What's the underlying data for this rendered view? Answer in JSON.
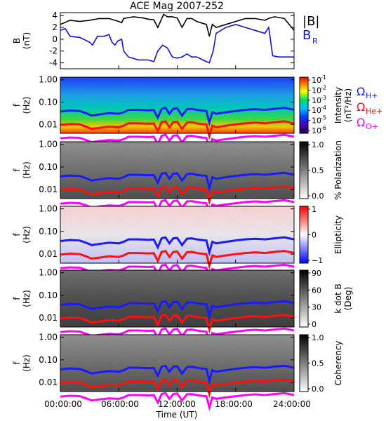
{
  "chart_data": {
    "type": "line",
    "title": "ACE Mag 2007-252",
    "xlabel": "Time (UT)",
    "xlim": [
      0,
      24
    ],
    "x_ticks": [
      "00:00:00",
      "06:00:00",
      "12:00:00",
      "18:00:00",
      "24:00:00"
    ],
    "colors": {
      "B_total": "#000000",
      "B_R": "#1010e0",
      "H": "#1a1aff",
      "He": "#ff1010",
      "O": "#ff00ff"
    },
    "panels": [
      {
        "key": "field",
        "ylabel": "B",
        "yunit": "(nT)",
        "ylim": [
          -5,
          4.5
        ],
        "yticks": [
          "4",
          "2",
          "0",
          "-2",
          "-4"
        ],
        "legend": [
          "|B|",
          "B",
          "R"
        ],
        "series": [
          {
            "name": "|B|",
            "color": "#000000",
            "x": [
              0,
              1,
              2,
              3,
              4,
              5,
              6,
              6.3,
              6.5,
              7.5,
              8.5,
              9,
              9.6,
              10,
              10.6,
              11,
              11.5,
              12,
              12.5,
              13,
              13.5,
              14,
              15,
              15.3,
              15.6,
              16,
              17,
              18,
              19,
              20,
              21,
              21.5,
              22,
              23,
              24
            ],
            "y": [
              2.5,
              3.2,
              3.0,
              3.2,
              3.5,
              3.5,
              3.0,
              2.8,
              3.5,
              3.8,
              3.6,
              3.4,
              3.3,
              2.0,
              4.2,
              3.8,
              3.8,
              3.6,
              2.0,
              3.5,
              3.5,
              3.0,
              2.5,
              0.5,
              2.5,
              2.0,
              2.5,
              3.0,
              3.5,
              3.5,
              3.2,
              3.6,
              3.8,
              3.5,
              1.5
            ]
          },
          {
            "name": "B_R",
            "color": "#1010e0",
            "x": [
              0,
              0.5,
              1,
              2,
              3,
              3.3,
              3.8,
              4.5,
              5,
              5.3,
              5.6,
              5.9,
              6.3,
              6.5,
              7,
              8,
              9,
              9.6,
              10,
              10.5,
              11,
              11.5,
              12,
              12.5,
              13,
              13.5,
              14,
              14.5,
              15,
              15.3,
              15.7,
              16,
              17,
              18,
              19,
              20,
              21,
              21.4,
              21.8,
              22.4,
              23,
              24
            ],
            "y": [
              1.5,
              1.8,
              0.5,
              0.3,
              -0.5,
              -1.0,
              0.5,
              0.5,
              0.8,
              -0.5,
              -1.0,
              -0.3,
              0.0,
              -2.0,
              -3.0,
              -3.5,
              -3.5,
              -3.8,
              -2.0,
              -1.0,
              -1.5,
              -3.0,
              -3.2,
              -3.0,
              -2.5,
              -3.0,
              -3.0,
              -3.4,
              -3.8,
              -4.0,
              -2.0,
              1.0,
              2.0,
              2.5,
              2.0,
              1.5,
              1.0,
              2.0,
              -2.8,
              -3.0,
              -3.0,
              -3.0
            ]
          }
        ]
      },
      {
        "key": "intensity",
        "ylabel": "f",
        "yunit": "(Hz)",
        "ylim": [
          0.004,
          1.3
        ],
        "yscale": "log",
        "yticks": [
          "1.00",
          "0.10",
          "0.01"
        ],
        "colorbar": {
          "label_1": "Intensity",
          "label_2": "(nT²/Hz)",
          "ticks": [
            "10",
            "10",
            "10",
            "10",
            "10",
            "10"
          ],
          "exps": [
            "-1",
            "-2",
            "-3",
            "-4",
            "-5",
            "-6"
          ]
        }
      },
      {
        "key": "polarization",
        "ylabel": "f",
        "yunit": "(Hz)",
        "ylim": [
          0.004,
          1.3
        ],
        "yscale": "log",
        "yticks": [
          "1.00",
          "0.10",
          "0.01"
        ],
        "colorbar": {
          "label_1": "% Polarization",
          "label_2": "",
          "ticks": [
            "1.0",
            "0.5",
            "0.0"
          ]
        }
      },
      {
        "key": "ellipticity",
        "ylabel": "f",
        "yunit": "(Hz)",
        "ylim": [
          0.004,
          1.3
        ],
        "yscale": "log",
        "yticks": [
          "1.00",
          "0.10",
          "0.01"
        ],
        "colorbar": {
          "label_1": "Ellipticity",
          "label_2": "",
          "ticks": [
            "1",
            "0",
            "−1"
          ]
        }
      },
      {
        "key": "kdotb",
        "ylabel": "f",
        "yunit": "(Hz)",
        "ylim": [
          0.004,
          1.3
        ],
        "yscale": "log",
        "yticks": [
          "1.00",
          "0.10",
          "0.01"
        ],
        "colorbar": {
          "label_1": "k dot B",
          "label_2": "(Deg)",
          "ticks": [
            "90",
            "60",
            "30",
            "0"
          ]
        }
      },
      {
        "key": "coherency",
        "ylabel": "f",
        "yunit": "(Hz)",
        "ylim": [
          0.004,
          1.3
        ],
        "yscale": "log",
        "yticks": [
          "1.00",
          "0.10",
          "0.01"
        ],
        "colorbar": {
          "label_1": "Coherency",
          "label_2": "",
          "ticks": [
            "1.0",
            "0.5",
            "0.0"
          ]
        }
      }
    ],
    "gyrofrequency_series": [
      {
        "name": "ΩH+",
        "label_main": "Ω",
        "label_sub": "H+",
        "color": "#1a1aff",
        "x": [
          0,
          1,
          2,
          2.8,
          3.2,
          4,
          5,
          6,
          6.5,
          7,
          8,
          9,
          9.6,
          10,
          10.4,
          10.8,
          11.2,
          11.6,
          12,
          12.5,
          13,
          13.5,
          14,
          14.5,
          15,
          15.3,
          15.6,
          16,
          17,
          18,
          19,
          20,
          21,
          22,
          23,
          24
        ],
        "y": [
          0.038,
          0.042,
          0.04,
          0.03,
          0.025,
          0.028,
          0.032,
          0.03,
          0.035,
          0.045,
          0.045,
          0.043,
          0.044,
          0.02,
          0.05,
          0.055,
          0.03,
          0.05,
          0.052,
          0.025,
          0.048,
          0.05,
          0.045,
          0.042,
          0.04,
          0.012,
          0.035,
          0.03,
          0.035,
          0.04,
          0.045,
          0.048,
          0.045,
          0.05,
          0.055,
          0.045
        ]
      },
      {
        "name": "ΩHe+",
        "label_main": "Ω",
        "label_sub": "He+",
        "color": "#ff1010",
        "x": [
          0,
          1,
          2,
          2.8,
          3.2,
          4,
          5,
          6,
          6.5,
          7,
          8,
          9,
          9.6,
          10,
          10.4,
          10.8,
          11.2,
          11.6,
          12,
          12.5,
          13,
          13.5,
          14,
          14.5,
          15,
          15.3,
          15.6,
          16,
          17,
          18,
          19,
          20,
          21,
          22,
          23,
          24
        ],
        "y": [
          0.0095,
          0.0105,
          0.01,
          0.0075,
          0.0063,
          0.007,
          0.008,
          0.0075,
          0.0088,
          0.0112,
          0.0112,
          0.0108,
          0.011,
          0.005,
          0.0125,
          0.0138,
          0.0075,
          0.0125,
          0.013,
          0.0063,
          0.012,
          0.0125,
          0.0112,
          0.0105,
          0.01,
          0.003,
          0.0088,
          0.0075,
          0.0088,
          0.01,
          0.0112,
          0.012,
          0.0112,
          0.0125,
          0.0138,
          0.0112
        ]
      },
      {
        "name": "ΩO+",
        "label_main": "Ω",
        "label_sub": "O+",
        "color": "#ff00ff",
        "x": [
          0,
          1,
          2,
          2.8,
          3.2,
          4,
          5,
          6,
          6.5,
          7,
          8,
          9,
          9.6,
          10,
          10.4,
          10.8,
          11.2,
          11.6,
          12,
          12.5,
          13,
          13.5,
          14,
          14.5,
          15,
          15.3,
          15.6,
          16,
          17,
          18,
          19,
          20,
          21,
          22,
          23,
          24
        ],
        "y": [
          0.0024,
          0.0026,
          0.0025,
          0.0019,
          0.0016,
          0.0018,
          0.002,
          0.0019,
          0.0022,
          0.0028,
          0.0028,
          0.0027,
          0.0028,
          0.0013,
          0.0031,
          0.0034,
          0.0019,
          0.0031,
          0.0033,
          0.0016,
          0.003,
          0.0031,
          0.0028,
          0.0026,
          0.0025,
          0.0008,
          0.0022,
          0.0019,
          0.0022,
          0.0025,
          0.0028,
          0.003,
          0.0028,
          0.0031,
          0.0034,
          0.0028
        ]
      }
    ]
  }
}
